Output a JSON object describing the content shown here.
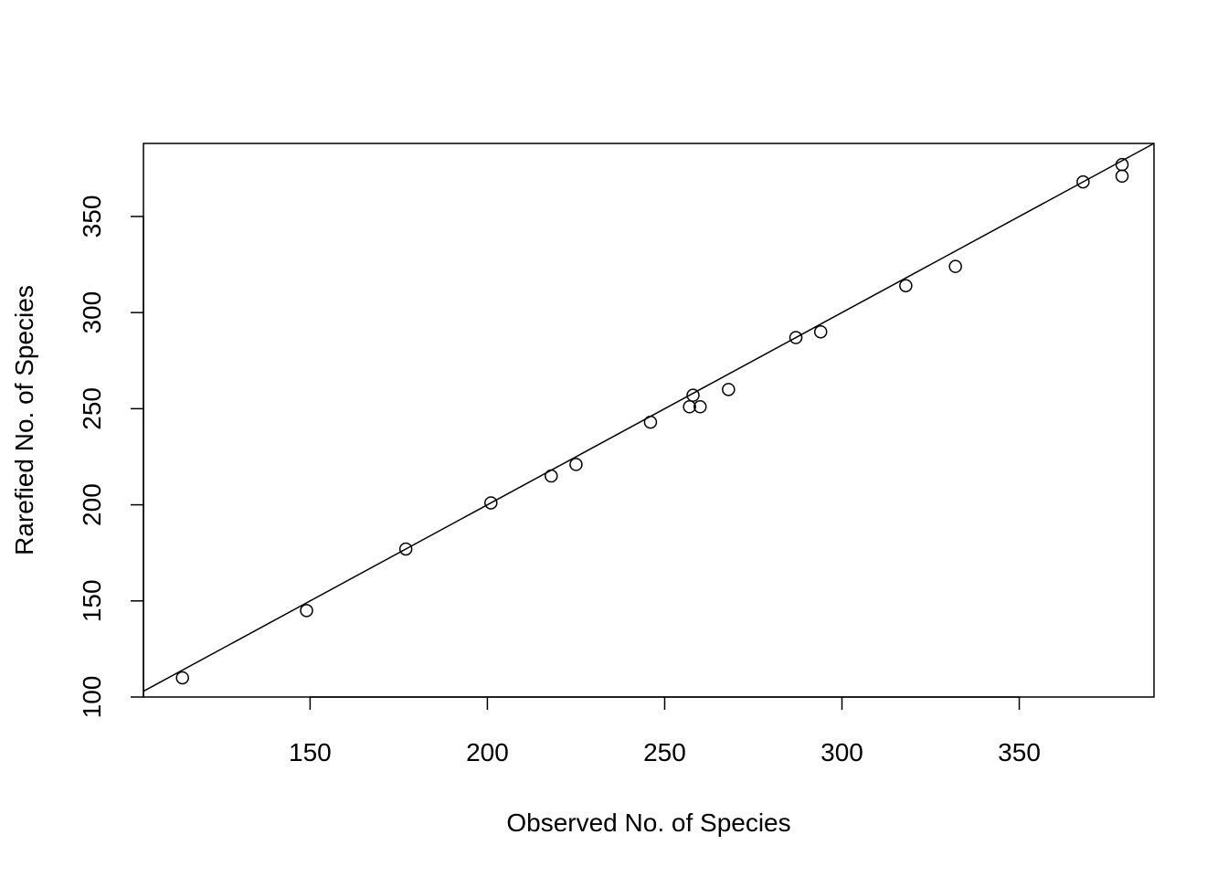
{
  "chart_data": {
    "type": "scatter",
    "title": "",
    "xlabel": "Observed No. of Species",
    "ylabel": "Rarefied No. of Species",
    "xlim": [
      103,
      388
    ],
    "ylim": [
      100,
      388
    ],
    "xticks": [
      150,
      200,
      250,
      300,
      350
    ],
    "yticks": [
      100,
      150,
      200,
      250,
      300,
      350
    ],
    "grid": false,
    "legend": "none",
    "points": [
      {
        "x": 114,
        "y": 110
      },
      {
        "x": 149,
        "y": 145
      },
      {
        "x": 177,
        "y": 177
      },
      {
        "x": 201,
        "y": 201
      },
      {
        "x": 218,
        "y": 215
      },
      {
        "x": 225,
        "y": 221
      },
      {
        "x": 246,
        "y": 243
      },
      {
        "x": 257,
        "y": 251
      },
      {
        "x": 258,
        "y": 257
      },
      {
        "x": 260,
        "y": 251
      },
      {
        "x": 268,
        "y": 260
      },
      {
        "x": 287,
        "y": 287
      },
      {
        "x": 294,
        "y": 290
      },
      {
        "x": 318,
        "y": 314
      },
      {
        "x": 332,
        "y": 324
      },
      {
        "x": 368,
        "y": 368
      },
      {
        "x": 379,
        "y": 377
      },
      {
        "x": 379,
        "y": 371
      }
    ],
    "reference_line": {
      "intercept": 0,
      "slope": 1
    },
    "colors": {
      "points": "#000000",
      "line": "#000000",
      "background": "#ffffff"
    }
  }
}
